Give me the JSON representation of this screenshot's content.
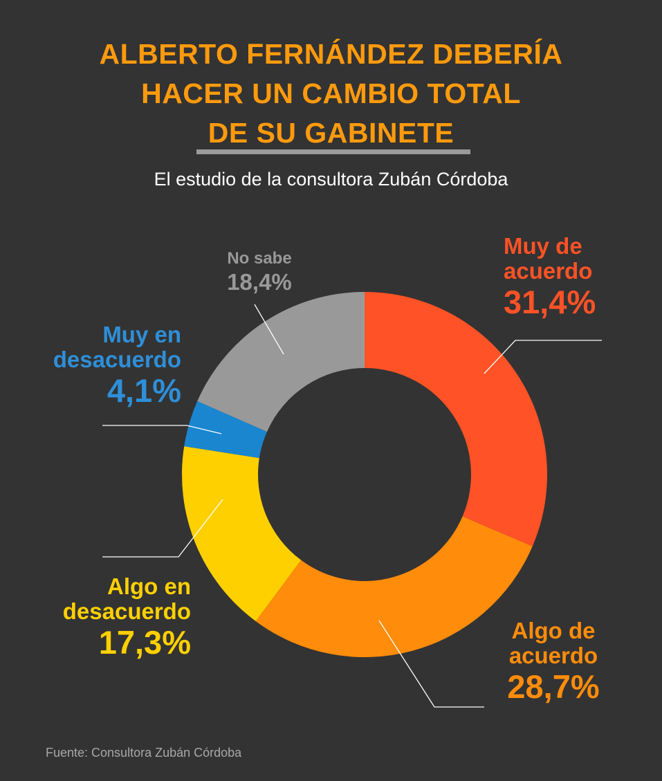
{
  "chart_data": {
    "type": "pie",
    "variant": "donut",
    "title": "ALBERTO FERNÁNDEZ DEBERÍA HACER UN CAMBIO TOTAL DE SU GABINETE",
    "title_lines": [
      "ALBERTO FERNÁNDEZ DEBERÍA",
      "HACER UN CAMBIO TOTAL",
      "DE SU GABINETE"
    ],
    "subtitle": "El estudio de la consultora Zubán Córdoba",
    "source": "Fuente: Consultora Zubán Córdoba",
    "slices": [
      {
        "label": "Muy de acuerdo",
        "label_lines": [
          "Muy de",
          "acuerdo"
        ],
        "value": 31.4,
        "value_label": "31,4%",
        "color": "#FF5226"
      },
      {
        "label": "Algo de acuerdo",
        "label_lines": [
          "Algo de",
          "acuerdo"
        ],
        "value": 28.7,
        "value_label": "28,7%",
        "color": "#FF8C0A"
      },
      {
        "label": "Algo en desacuerdo",
        "label_lines": [
          "Algo en",
          "desacuerdo"
        ],
        "value": 17.3,
        "value_label": "17,3%",
        "color": "#FFD000"
      },
      {
        "label": "Muy en desacuerdo",
        "label_lines": [
          "Muy en",
          "desacuerdo"
        ],
        "value": 4.1,
        "value_label": "4,1%",
        "color": "#1A86D0"
      },
      {
        "label": "No sabe",
        "label_lines": [
          "No sabe"
        ],
        "value": 18.4,
        "value_label": "18,4%",
        "color": "#999999"
      }
    ]
  }
}
